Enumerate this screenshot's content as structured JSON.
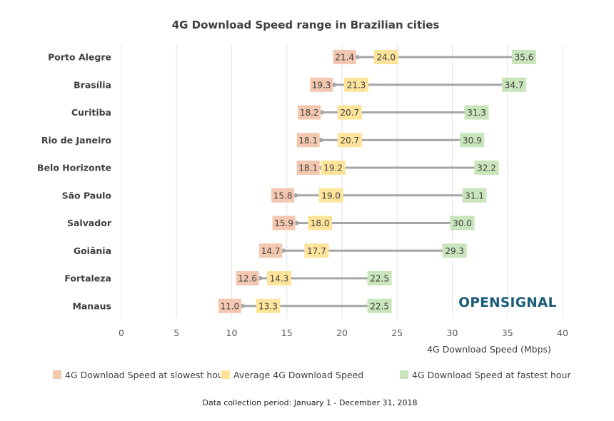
{
  "chart_data": {
    "type": "range",
    "title": "4G Download Speed range in Brazilian cities",
    "xlabel": "4G Download Speed (Mbps)",
    "xlim": [
      0,
      40
    ],
    "xticks": [
      "0",
      "5",
      "10",
      "15",
      "20",
      "25",
      "30",
      "35",
      "40"
    ],
    "grid": "vertical",
    "legend_position": "bottom",
    "categories": [
      "Porto Alegre",
      "Brasília",
      "Curitiba",
      "Rio de Janeiro",
      "Belo Horizonte",
      "São Paulo",
      "Salvador",
      "Goiânia",
      "Fortaleza",
      "Manaus"
    ],
    "series": [
      {
        "name": "4G Download Speed at slowest hour",
        "color": "#f4c7b0",
        "values": [
          21.4,
          19.3,
          18.2,
          18.1,
          18.1,
          15.8,
          15.9,
          14.7,
          12.6,
          11.0
        ]
      },
      {
        "name": "Average 4G Download Speed",
        "color": "#fde49a",
        "values": [
          24.0,
          21.3,
          20.7,
          20.7,
          19.2,
          19.0,
          18.0,
          17.7,
          14.3,
          13.3
        ]
      },
      {
        "name": "4G Download Speed at fastest hour",
        "color": "#c9e5bb",
        "values": [
          35.6,
          34.7,
          31.3,
          30.9,
          32.2,
          31.1,
          30.0,
          29.3,
          22.5,
          22.5
        ]
      }
    ],
    "value_labels": [
      [
        "21.4",
        "24.0",
        "35.6"
      ],
      [
        "19.3",
        "21.3",
        "34.7"
      ],
      [
        "18.2",
        "20.7",
        "31.3"
      ],
      [
        "18.1",
        "20.7",
        "30.9"
      ],
      [
        "18.1",
        "19.2",
        "32.2"
      ],
      [
        "15.8",
        "19.0",
        "31.1"
      ],
      [
        "15.9",
        "18.0",
        "30.0"
      ],
      [
        "14.7",
        "17.7",
        "29.3"
      ],
      [
        "12.6",
        "14.3",
        "22.5"
      ],
      [
        "11.0",
        "13.3",
        "22.5"
      ]
    ],
    "line_color": "#a6a6a6"
  },
  "brand": {
    "text": "OPENSIGNAL",
    "color": "#1a5b78"
  },
  "footer": {
    "text": "Data collection period: January 1 - December 31, 2018"
  }
}
